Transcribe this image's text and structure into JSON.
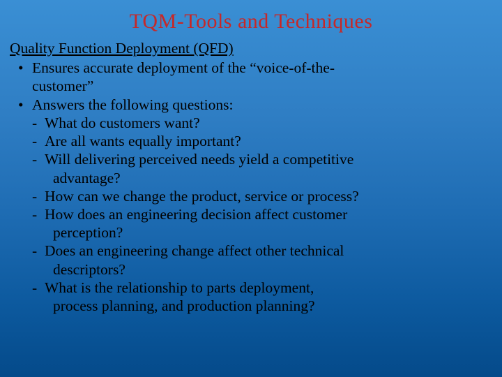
{
  "slide": {
    "title": "TQM-Tools and Techniques",
    "section_header": "Quality Function Deployment (QFD)",
    "title_color": "#c62828",
    "text_color": "#000000",
    "background_gradient": [
      "#3a8fd4",
      "#0d5a9f"
    ],
    "title_fontsize": 30,
    "body_fontsize": 21.5,
    "bullets": [
      {
        "text_lines": [
          "Ensures accurate deployment of the “voice-of-the-",
          "customer”"
        ]
      },
      {
        "text_lines": [
          "Answers the following questions:"
        ],
        "subs": [
          {
            "lines": [
              "What do customers want?"
            ]
          },
          {
            "lines": [
              "Are all wants equally important?"
            ]
          },
          {
            "lines": [
              "Will delivering perceived needs yield a competitive",
              "advantage?"
            ]
          },
          {
            "lines": [
              "How can we change the product, service or process?"
            ]
          },
          {
            "lines": [
              "How does an engineering decision affect customer",
              "perception?"
            ]
          },
          {
            "lines": [
              "Does an engineering change affect other technical",
              "descriptors?"
            ]
          },
          {
            "lines": [
              "What is the relationship to parts deployment,",
              "process planning, and production planning?"
            ]
          }
        ]
      }
    ]
  }
}
